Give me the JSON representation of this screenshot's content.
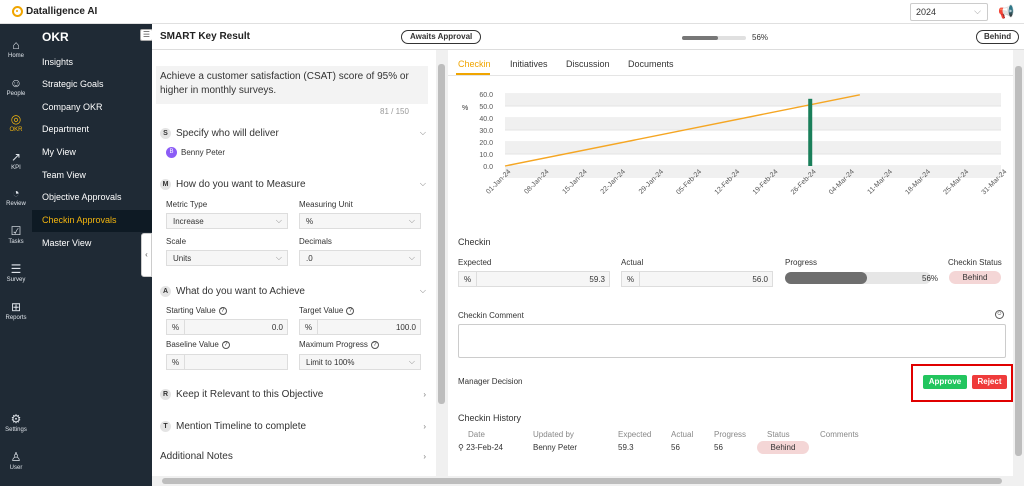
{
  "app": {
    "brand": "Datalligence AI",
    "year": "2024"
  },
  "iconbar": [
    {
      "label": "Home",
      "glyph": "⌂",
      "active": false
    },
    {
      "label": "People",
      "glyph": "☺",
      "active": false
    },
    {
      "label": "OKR",
      "glyph": "◎",
      "active": true
    },
    {
      "label": "KPI",
      "glyph": "↗",
      "active": false
    },
    {
      "label": "Review",
      "glyph": "◔",
      "active": false
    },
    {
      "label": "Tasks",
      "glyph": "☑",
      "active": false
    },
    {
      "label": "Survey",
      "glyph": "☰",
      "active": false
    },
    {
      "label": "Reports",
      "glyph": "⊞",
      "active": false
    },
    {
      "label": "Settings",
      "glyph": "⚙",
      "active": false
    },
    {
      "label": "User",
      "glyph": "♙",
      "active": false
    }
  ],
  "nav": {
    "title": "OKR",
    "items": [
      "Insights",
      "Strategic Goals",
      "Company OKR",
      "Department",
      "My View",
      "Team View",
      "Objective Approvals",
      "Checkin Approvals",
      "Master View"
    ],
    "active_index": 7
  },
  "header": {
    "title": "SMART Key Result",
    "status": "Awaits Approval",
    "progress": 0.56,
    "progress_label": "56%",
    "track": "Behind"
  },
  "left": {
    "objective": "Achieve a customer satisfaction (CSAT) score of 95% or higher in monthly surveys.",
    "counter": "81 / 150",
    "s": {
      "badge": "S",
      "title": "Specify who will deliver",
      "owner_initial": "B",
      "owner": "Benny Peter"
    },
    "m": {
      "badge": "M",
      "title": "How do you want to Measure",
      "metric_type_label": "Metric Type",
      "metric_type": "Increase",
      "unit_label": "Measuring Unit",
      "unit": "%",
      "scale_label": "Scale",
      "scale": "Units",
      "decimals_label": "Decimals",
      "decimals": ".0"
    },
    "a": {
      "badge": "A",
      "title": "What do you want to Achieve",
      "start_label": "Starting Value",
      "start_prefix": "%",
      "start": "0.0",
      "target_label": "Target Value",
      "target_prefix": "%",
      "target": "100.0",
      "baseline_label": "Baseline Value",
      "baseline_prefix": "%",
      "baseline": "",
      "max_label": "Maximum Progress",
      "max": "Limit to 100%"
    },
    "r": {
      "badge": "R",
      "title": "Keep it Relevant to this Objective"
    },
    "t": {
      "badge": "T",
      "title": "Mention Timeline to complete"
    },
    "notes": "Additional Notes"
  },
  "tabs": [
    "Checkin",
    "Initiatives",
    "Discussion",
    "Documents"
  ],
  "chart_data": {
    "type": "line",
    "ylabel": "%",
    "ylim": [
      0,
      60
    ],
    "yticks": [
      "60.0",
      "50.0",
      "40.0",
      "30.0",
      "20.0",
      "10.0",
      "0.0"
    ],
    "categories": [
      "01-Jan-24",
      "08-Jan-24",
      "15-Jan-24",
      "22-Jan-24",
      "29-Jan-24",
      "05-Feb-24",
      "12-Feb-24",
      "19-Feb-24",
      "26-Feb-24",
      "04-Mar-24",
      "11-Mar-24",
      "18-Mar-24",
      "25-Mar-24",
      "31-Mar-24"
    ],
    "series": [
      {
        "type": "line",
        "points": [
          [
            0,
            0
          ],
          [
            9.3,
            59.3
          ]
        ],
        "color": "#f5a623"
      },
      {
        "type": "bar",
        "x": 8.0,
        "value": 56.0,
        "color": "#1a7f5a"
      }
    ]
  },
  "checkin": {
    "title": "Checkin",
    "expected_label": "Expected",
    "expected_prefix": "%",
    "expected": "59.3",
    "actual_label": "Actual",
    "actual_prefix": "%",
    "actual": "56.0",
    "progress_label": "Progress",
    "progress": 0.56,
    "progress_pct": "56%",
    "status_label": "Checkin Status",
    "status": "Behind",
    "comment_label": "Checkin Comment",
    "decision_label": "Manager Decision",
    "approve": "Approve",
    "reject": "Reject"
  },
  "history": {
    "title": "Checkin History",
    "headers": [
      "Date",
      "Updated by",
      "Expected",
      "Actual",
      "Progress",
      "Status",
      "Comments"
    ],
    "row": {
      "date": "23-Feb-24",
      "by": "Benny Peter",
      "expected": "59.3",
      "actual": "56",
      "progress": "56",
      "status": "Behind",
      "comments": ""
    }
  },
  "colors": {
    "accent": "#f0a500",
    "approve": "#22c55e",
    "reject": "#ef3b3b",
    "sidebar": "#1f2a35"
  }
}
